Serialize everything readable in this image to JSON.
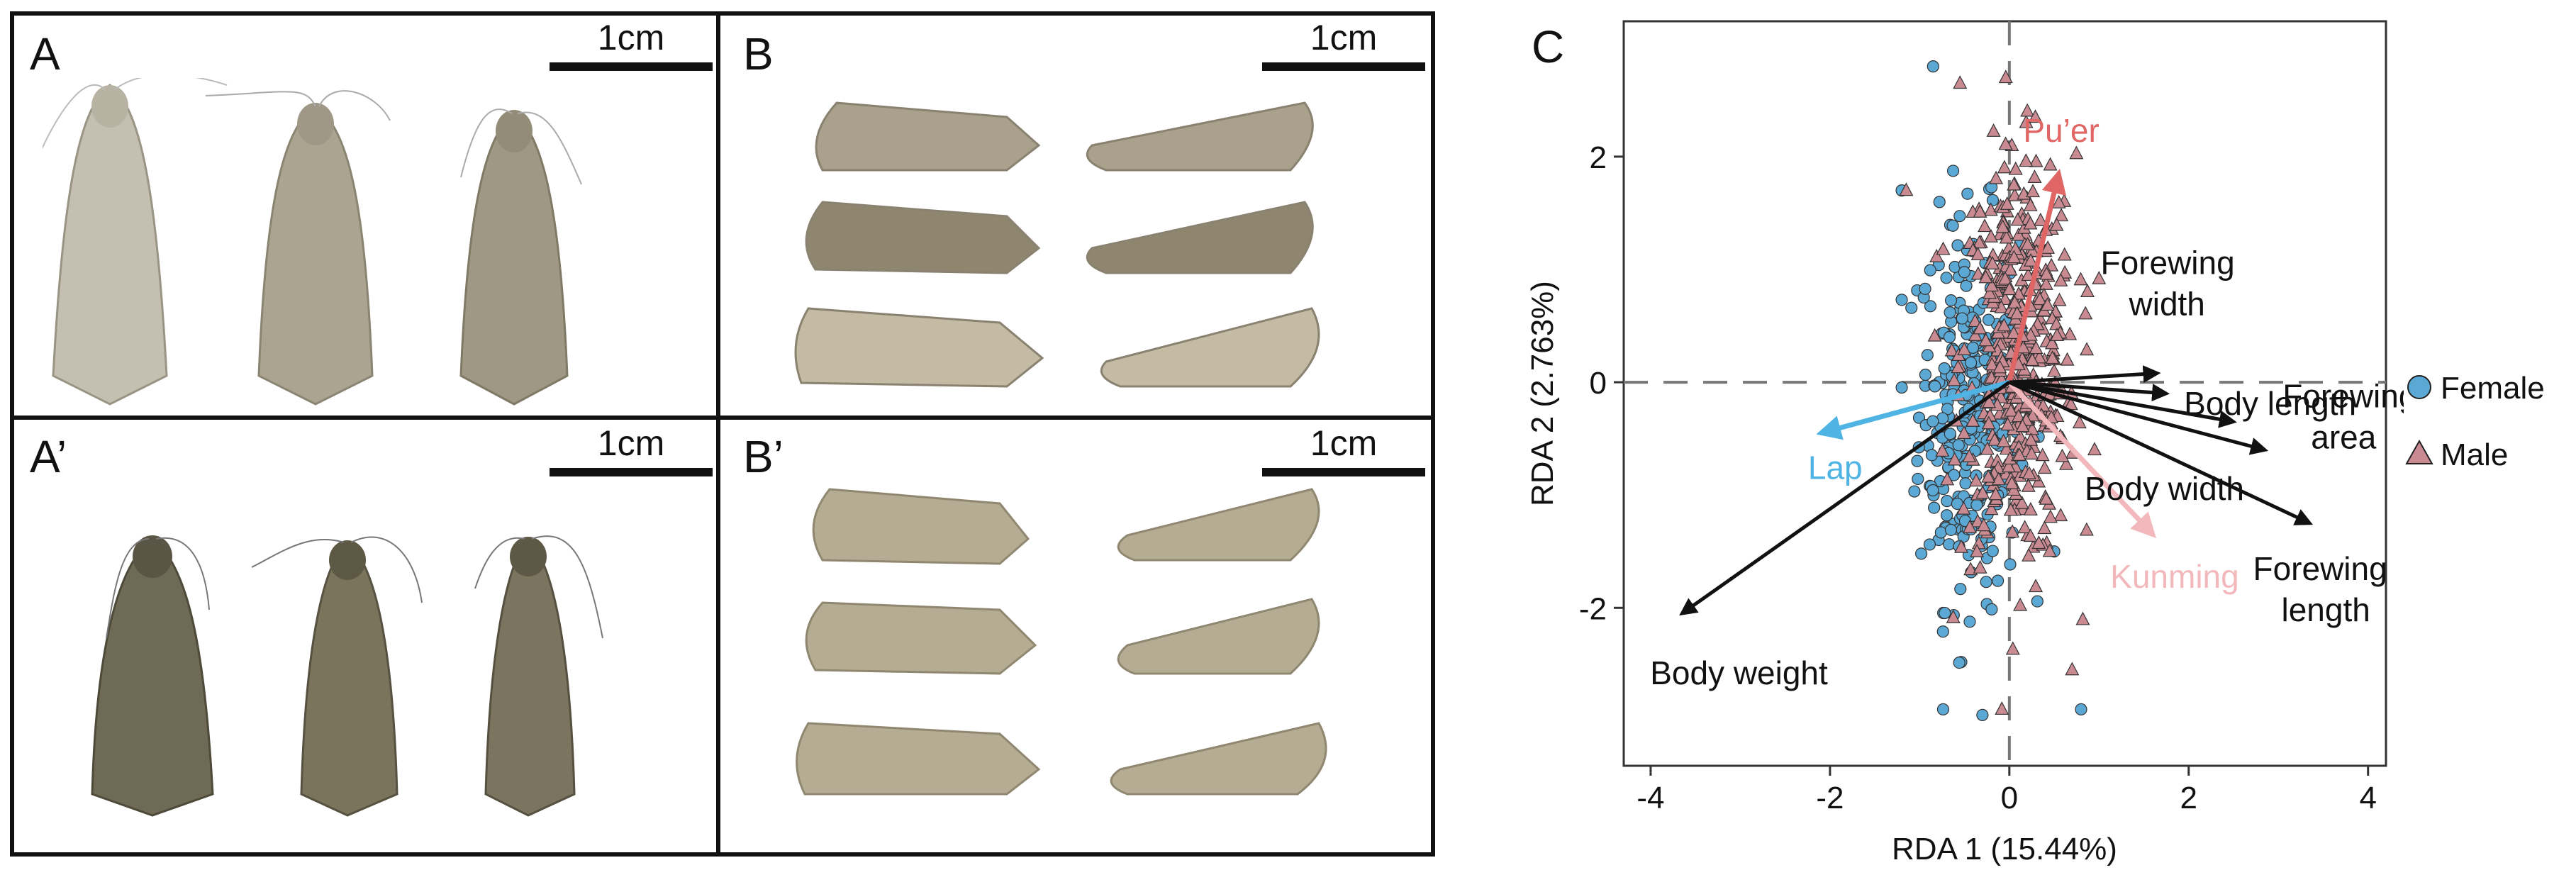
{
  "panels": {
    "a": {
      "letter": "A",
      "scale": "1cm"
    },
    "b": {
      "letter": "B",
      "scale": "1cm"
    },
    "a_prime": {
      "letter": "A’",
      "scale": "1cm"
    },
    "b_prime": {
      "letter": "B’",
      "scale": "1cm"
    }
  },
  "colors": {
    "female": "#5ba8d4",
    "male": "#c98a92",
    "puer": "#e06666",
    "lap": "#4fb4e4",
    "kunming": "#f2b8bc",
    "trait_arrow": "#111111",
    "moth_light": "#b8b2a4",
    "moth_dark": "#6a6450"
  },
  "chart_data": {
    "type": "scatter",
    "panel_label": "C",
    "xlabel": "RDA 1 (15.44%)",
    "ylabel": "RDA 2 (2.763%)",
    "xlim": [
      -4.3,
      4.2
    ],
    "ylim": [
      -3.4,
      3.2
    ],
    "xticks": [
      -4,
      -2,
      0,
      2,
      4
    ],
    "yticks": [
      -2,
      0,
      2
    ],
    "reference_lines": {
      "x": 0,
      "y": 0,
      "style": "dashed"
    },
    "series": [
      {
        "name": "Female",
        "marker": "circle",
        "color": "#5ba8d4",
        "cloud": {
          "n": 300,
          "x_mean": -0.45,
          "x_sd": 0.28,
          "y_mean": -0.25,
          "y_sd": 0.85,
          "extreme_points": [
            [
              -0.85,
              2.8
            ],
            [
              -0.3,
              -2.95
            ],
            [
              0.8,
              -2.9
            ],
            [
              -1.2,
              1.7
            ],
            [
              0.5,
              -1.5
            ]
          ]
        }
      },
      {
        "name": "Male",
        "marker": "triangle",
        "color": "#c98a92",
        "cloud": {
          "n": 450,
          "x_mean": 0.1,
          "x_sd": 0.32,
          "y_mean": 0.2,
          "y_sd": 0.9,
          "extreme_points": [
            [
              -0.55,
              2.65
            ],
            [
              0.7,
              -2.55
            ],
            [
              0.45,
              -1.5
            ],
            [
              -1.15,
              1.7
            ],
            [
              0.95,
              -0.6
            ]
          ]
        }
      }
    ],
    "biplot_arrows": [
      {
        "name": "Pu’er",
        "x": 0.55,
        "y": 1.85,
        "color": "#e06666",
        "kind": "factor"
      },
      {
        "name": "Lap",
        "x": -2.1,
        "y": -0.45,
        "color": "#4fb4e4",
        "kind": "factor"
      },
      {
        "name": "Kunming",
        "x": 1.6,
        "y": -1.35,
        "color": "#f2b8bc",
        "kind": "factor"
      },
      {
        "name": "Forewing width",
        "x": 1.65,
        "y": 0.08,
        "color": "#111111",
        "kind": "trait"
      },
      {
        "name": "Body length",
        "x": 1.75,
        "y": -0.1,
        "color": "#111111",
        "kind": "trait"
      },
      {
        "name": "Forewing area",
        "x": 2.85,
        "y": -0.6,
        "color": "#111111",
        "kind": "trait"
      },
      {
        "name": "Body width",
        "x": 2.5,
        "y": -0.35,
        "color": "#111111",
        "kind": "trait"
      },
      {
        "name": "Forewing length",
        "x": 3.35,
        "y": -1.25,
        "color": "#111111",
        "kind": "trait"
      },
      {
        "name": "Body weight",
        "x": -3.65,
        "y": -2.05,
        "color": "#111111",
        "kind": "trait"
      }
    ],
    "legend": {
      "placement": "right",
      "entries": [
        "Female",
        "Male"
      ]
    }
  }
}
